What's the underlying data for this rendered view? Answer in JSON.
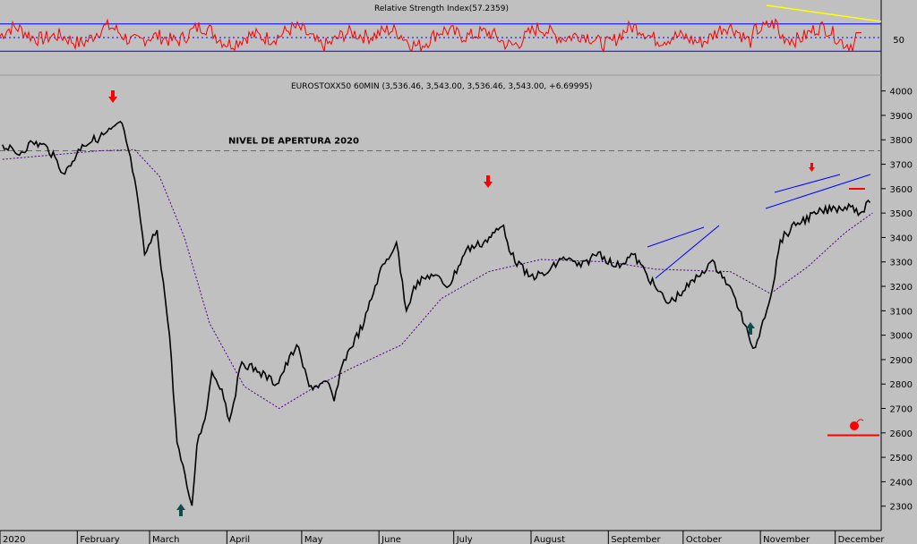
{
  "chart_data": [
    {
      "type": "line",
      "title": "Relative Strength Index(57.2359)",
      "ylim": [
        0,
        100
      ],
      "yticks": [
        50
      ],
      "overbought": 70,
      "oversold": 30,
      "midline": 50,
      "last_value": 57.2359,
      "colors": {
        "rsi": "#ff0000",
        "bands": "#0000ff",
        "trendline": "#ffff00"
      }
    },
    {
      "type": "line",
      "title": "EUROSTOXX50 60MIN (3,536.46, 3,543.00, 3,536.46, 3,543.00, +6.69995)",
      "ylim": [
        2200,
        4050
      ],
      "yticks": [
        "2300",
        "2400",
        "2500",
        "2600",
        "2700",
        "2800",
        "2900",
        "3000",
        "3100",
        "3200",
        "3300",
        "3400",
        "3500",
        "3600",
        "3700",
        "3800",
        "3900",
        "4000"
      ],
      "xticks": [
        "2020",
        "February",
        "March",
        "April",
        "May",
        "June",
        "July",
        "August",
        "September",
        "October",
        "November",
        "December"
      ],
      "reference_level": {
        "label": "NIVEL DE APERTURA 2020",
        "value": 3755
      },
      "series_points": [
        [
          "2020-01-02",
          3780
        ],
        [
          "2020-01-08",
          3740
        ],
        [
          "2020-01-14",
          3790
        ],
        [
          "2020-01-20",
          3770
        ],
        [
          "2020-01-27",
          3660
        ],
        [
          "2020-02-03",
          3780
        ],
        [
          "2020-02-10",
          3810
        ],
        [
          "2020-02-19",
          3867
        ],
        [
          "2020-02-24",
          3640
        ],
        [
          "2020-02-28",
          3330
        ],
        [
          "2020-03-04",
          3430
        ],
        [
          "2020-03-09",
          3000
        ],
        [
          "2020-03-12",
          2560
        ],
        [
          "2020-03-16",
          2380
        ],
        [
          "2020-03-18",
          2302
        ],
        [
          "2020-03-20",
          2550
        ],
        [
          "2020-03-24",
          2700
        ],
        [
          "2020-03-26",
          2850
        ],
        [
          "2020-03-30",
          2780
        ],
        [
          "2020-04-02",
          2650
        ],
        [
          "2020-04-07",
          2890
        ],
        [
          "2020-04-14",
          2850
        ],
        [
          "2020-04-21",
          2800
        ],
        [
          "2020-04-29",
          2960
        ],
        [
          "2020-05-04",
          2790
        ],
        [
          "2020-05-12",
          2800
        ],
        [
          "2020-05-14",
          2730
        ],
        [
          "2020-05-18",
          2900
        ],
        [
          "2020-05-26",
          3050
        ],
        [
          "2020-06-01",
          3250
        ],
        [
          "2020-06-08",
          3380
        ],
        [
          "2020-06-12",
          3100
        ],
        [
          "2020-06-15",
          3200
        ],
        [
          "2020-06-22",
          3250
        ],
        [
          "2020-06-29",
          3200
        ],
        [
          "2020-07-06",
          3350
        ],
        [
          "2020-07-13",
          3380
        ],
        [
          "2020-07-21",
          3450
        ],
        [
          "2020-07-24",
          3330
        ],
        [
          "2020-07-31",
          3240
        ],
        [
          "2020-08-07",
          3250
        ],
        [
          "2020-08-14",
          3320
        ],
        [
          "2020-08-21",
          3280
        ],
        [
          "2020-08-28",
          3340
        ],
        [
          "2020-09-04",
          3280
        ],
        [
          "2020-09-11",
          3330
        ],
        [
          "2020-09-21",
          3180
        ],
        [
          "2020-09-25",
          3130
        ],
        [
          "2020-10-01",
          3180
        ],
        [
          "2020-10-07",
          3240
        ],
        [
          "2020-10-12",
          3300
        ],
        [
          "2020-10-16",
          3260
        ],
        [
          "2020-10-22",
          3150
        ],
        [
          "2020-10-28",
          2970
        ],
        [
          "2020-10-30",
          2950
        ],
        [
          "2020-11-02",
          3060
        ],
        [
          "2020-11-06",
          3200
        ],
        [
          "2020-11-09",
          3390
        ],
        [
          "2020-11-16",
          3460
        ],
        [
          "2020-11-24",
          3500
        ],
        [
          "2020-12-01",
          3520
        ],
        [
          "2020-12-08",
          3530
        ],
        [
          "2020-12-11",
          3500
        ],
        [
          "2020-12-15",
          3543
        ]
      ],
      "moving_average": [
        [
          "2020-01-02",
          3720
        ],
        [
          "2020-02-10",
          3755
        ],
        [
          "2020-02-24",
          3760
        ],
        [
          "2020-03-05",
          3650
        ],
        [
          "2020-03-15",
          3400
        ],
        [
          "2020-03-25",
          3050
        ],
        [
          "2020-04-08",
          2790
        ],
        [
          "2020-04-22",
          2700
        ],
        [
          "2020-05-05",
          2780
        ],
        [
          "2020-05-20",
          2860
        ],
        [
          "2020-06-10",
          2960
        ],
        [
          "2020-06-26",
          3150
        ],
        [
          "2020-07-15",
          3260
        ],
        [
          "2020-08-05",
          3310
        ],
        [
          "2020-09-01",
          3300
        ],
        [
          "2020-09-20",
          3270
        ],
        [
          "2020-10-20",
          3260
        ],
        [
          "2020-11-05",
          3170
        ],
        [
          "2020-11-20",
          3280
        ],
        [
          "2020-12-05",
          3420
        ],
        [
          "2020-12-16",
          3500
        ]
      ],
      "support_marker": 2590,
      "colors": {
        "price": "#000000",
        "moving_average": "#4b0082",
        "annotation": "#ff0000",
        "channel": "#0000ff",
        "reversal_up": "#0f4d4d"
      }
    }
  ]
}
